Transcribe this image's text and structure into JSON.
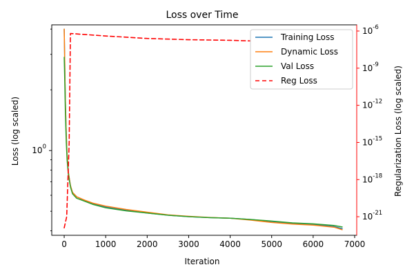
{
  "chart_data": {
    "type": "line",
    "title": "Loss over Time",
    "xlabel": "Iteration",
    "ylabel": "Loss (log scaled)",
    "y2label": "Regularization Loss (log scaled)",
    "xlim": [
      -300,
      7050
    ],
    "x_ticks": [
      0,
      1000,
      2000,
      3000,
      4000,
      5000,
      6000,
      7000
    ],
    "x_tick_labels": [
      "0",
      "1000",
      "2000",
      "3000",
      "4000",
      "5000",
      "6000",
      "7000"
    ],
    "ylim": [
      0.38,
      4.2
    ],
    "y_scale": "log",
    "y_major_ticks": [
      1
    ],
    "y_major_tick_labels": [
      "10^0"
    ],
    "y_minor_ticks": [
      0.4,
      0.5,
      0.6,
      0.7,
      0.8,
      0.9,
      2,
      3,
      4
    ],
    "y2lim_exp": [
      -22.5,
      -5.5
    ],
    "y2_scale": "log",
    "y2_ticks_exp": [
      -6,
      -9,
      -12,
      -15,
      -18,
      -21
    ],
    "y2_tick_labels": [
      "10^-6",
      "10^-9",
      "10^-12",
      "10^-15",
      "10^-18",
      "10^-21"
    ],
    "grid": true,
    "legend_position": "top-right",
    "colors": {
      "training": "#1f77b4",
      "dynamic": "#ff7f0e",
      "val": "#2ca02c",
      "reg": "#ff0000",
      "grid": "#b0b0b0",
      "right_axis": "#ff0000"
    },
    "series": [
      {
        "name": "Training Loss",
        "axis": "left",
        "style": "solid",
        "color": "#1f77b4",
        "x": [
          0,
          10,
          20,
          30,
          50,
          70,
          100,
          150,
          200,
          300,
          500,
          700,
          1000,
          1500,
          2000,
          2500,
          3000,
          3500,
          4000,
          4500,
          5000,
          5500,
          6000,
          6500,
          6700
        ],
        "y": [
          4.0,
          3.0,
          2.2,
          1.7,
          1.2,
          0.95,
          0.78,
          0.67,
          0.62,
          0.59,
          0.565,
          0.545,
          0.525,
          0.505,
          0.49,
          0.478,
          0.47,
          0.465,
          0.462,
          0.455,
          0.445,
          0.435,
          0.43,
          0.42,
          0.41
        ]
      },
      {
        "name": "Dynamic Loss",
        "axis": "left",
        "style": "solid",
        "color": "#ff7f0e",
        "x": [
          0,
          10,
          20,
          30,
          50,
          70,
          100,
          150,
          200,
          300,
          500,
          700,
          1000,
          1500,
          2000,
          2500,
          3000,
          3500,
          4000,
          4500,
          5000,
          5500,
          6000,
          6500,
          6700
        ],
        "y": [
          4.0,
          3.0,
          2.2,
          1.7,
          1.2,
          0.95,
          0.78,
          0.67,
          0.62,
          0.59,
          0.567,
          0.548,
          0.53,
          0.51,
          0.495,
          0.48,
          0.472,
          0.466,
          0.462,
          0.452,
          0.44,
          0.432,
          0.427,
          0.417,
          0.405
        ]
      },
      {
        "name": "Val Loss",
        "axis": "left",
        "style": "solid",
        "color": "#2ca02c",
        "x": [
          0,
          10,
          20,
          30,
          50,
          70,
          100,
          150,
          200,
          300,
          500,
          700,
          1000,
          1500,
          2000,
          2500,
          3000,
          3500,
          4000,
          4500,
          5000,
          5500,
          6000,
          6500,
          6700
        ],
        "y": [
          2.9,
          2.4,
          1.9,
          1.5,
          1.1,
          0.9,
          0.76,
          0.66,
          0.61,
          0.58,
          0.56,
          0.54,
          0.52,
          0.502,
          0.49,
          0.478,
          0.47,
          0.465,
          0.462,
          0.455,
          0.447,
          0.438,
          0.433,
          0.425,
          0.418
        ]
      },
      {
        "name": "Reg Loss",
        "axis": "right",
        "style": "dashed",
        "color": "#ff0000",
        "x": [
          0,
          60,
          120,
          150,
          1000,
          2000,
          3000,
          4000,
          5000,
          6000,
          6500,
          6700
        ],
        "y_exp": [
          -21.9,
          -21.0,
          -15.0,
          -6.2,
          -6.4,
          -6.6,
          -6.7,
          -6.75,
          -6.85,
          -6.95,
          -7.05,
          -7.15
        ]
      }
    ]
  }
}
